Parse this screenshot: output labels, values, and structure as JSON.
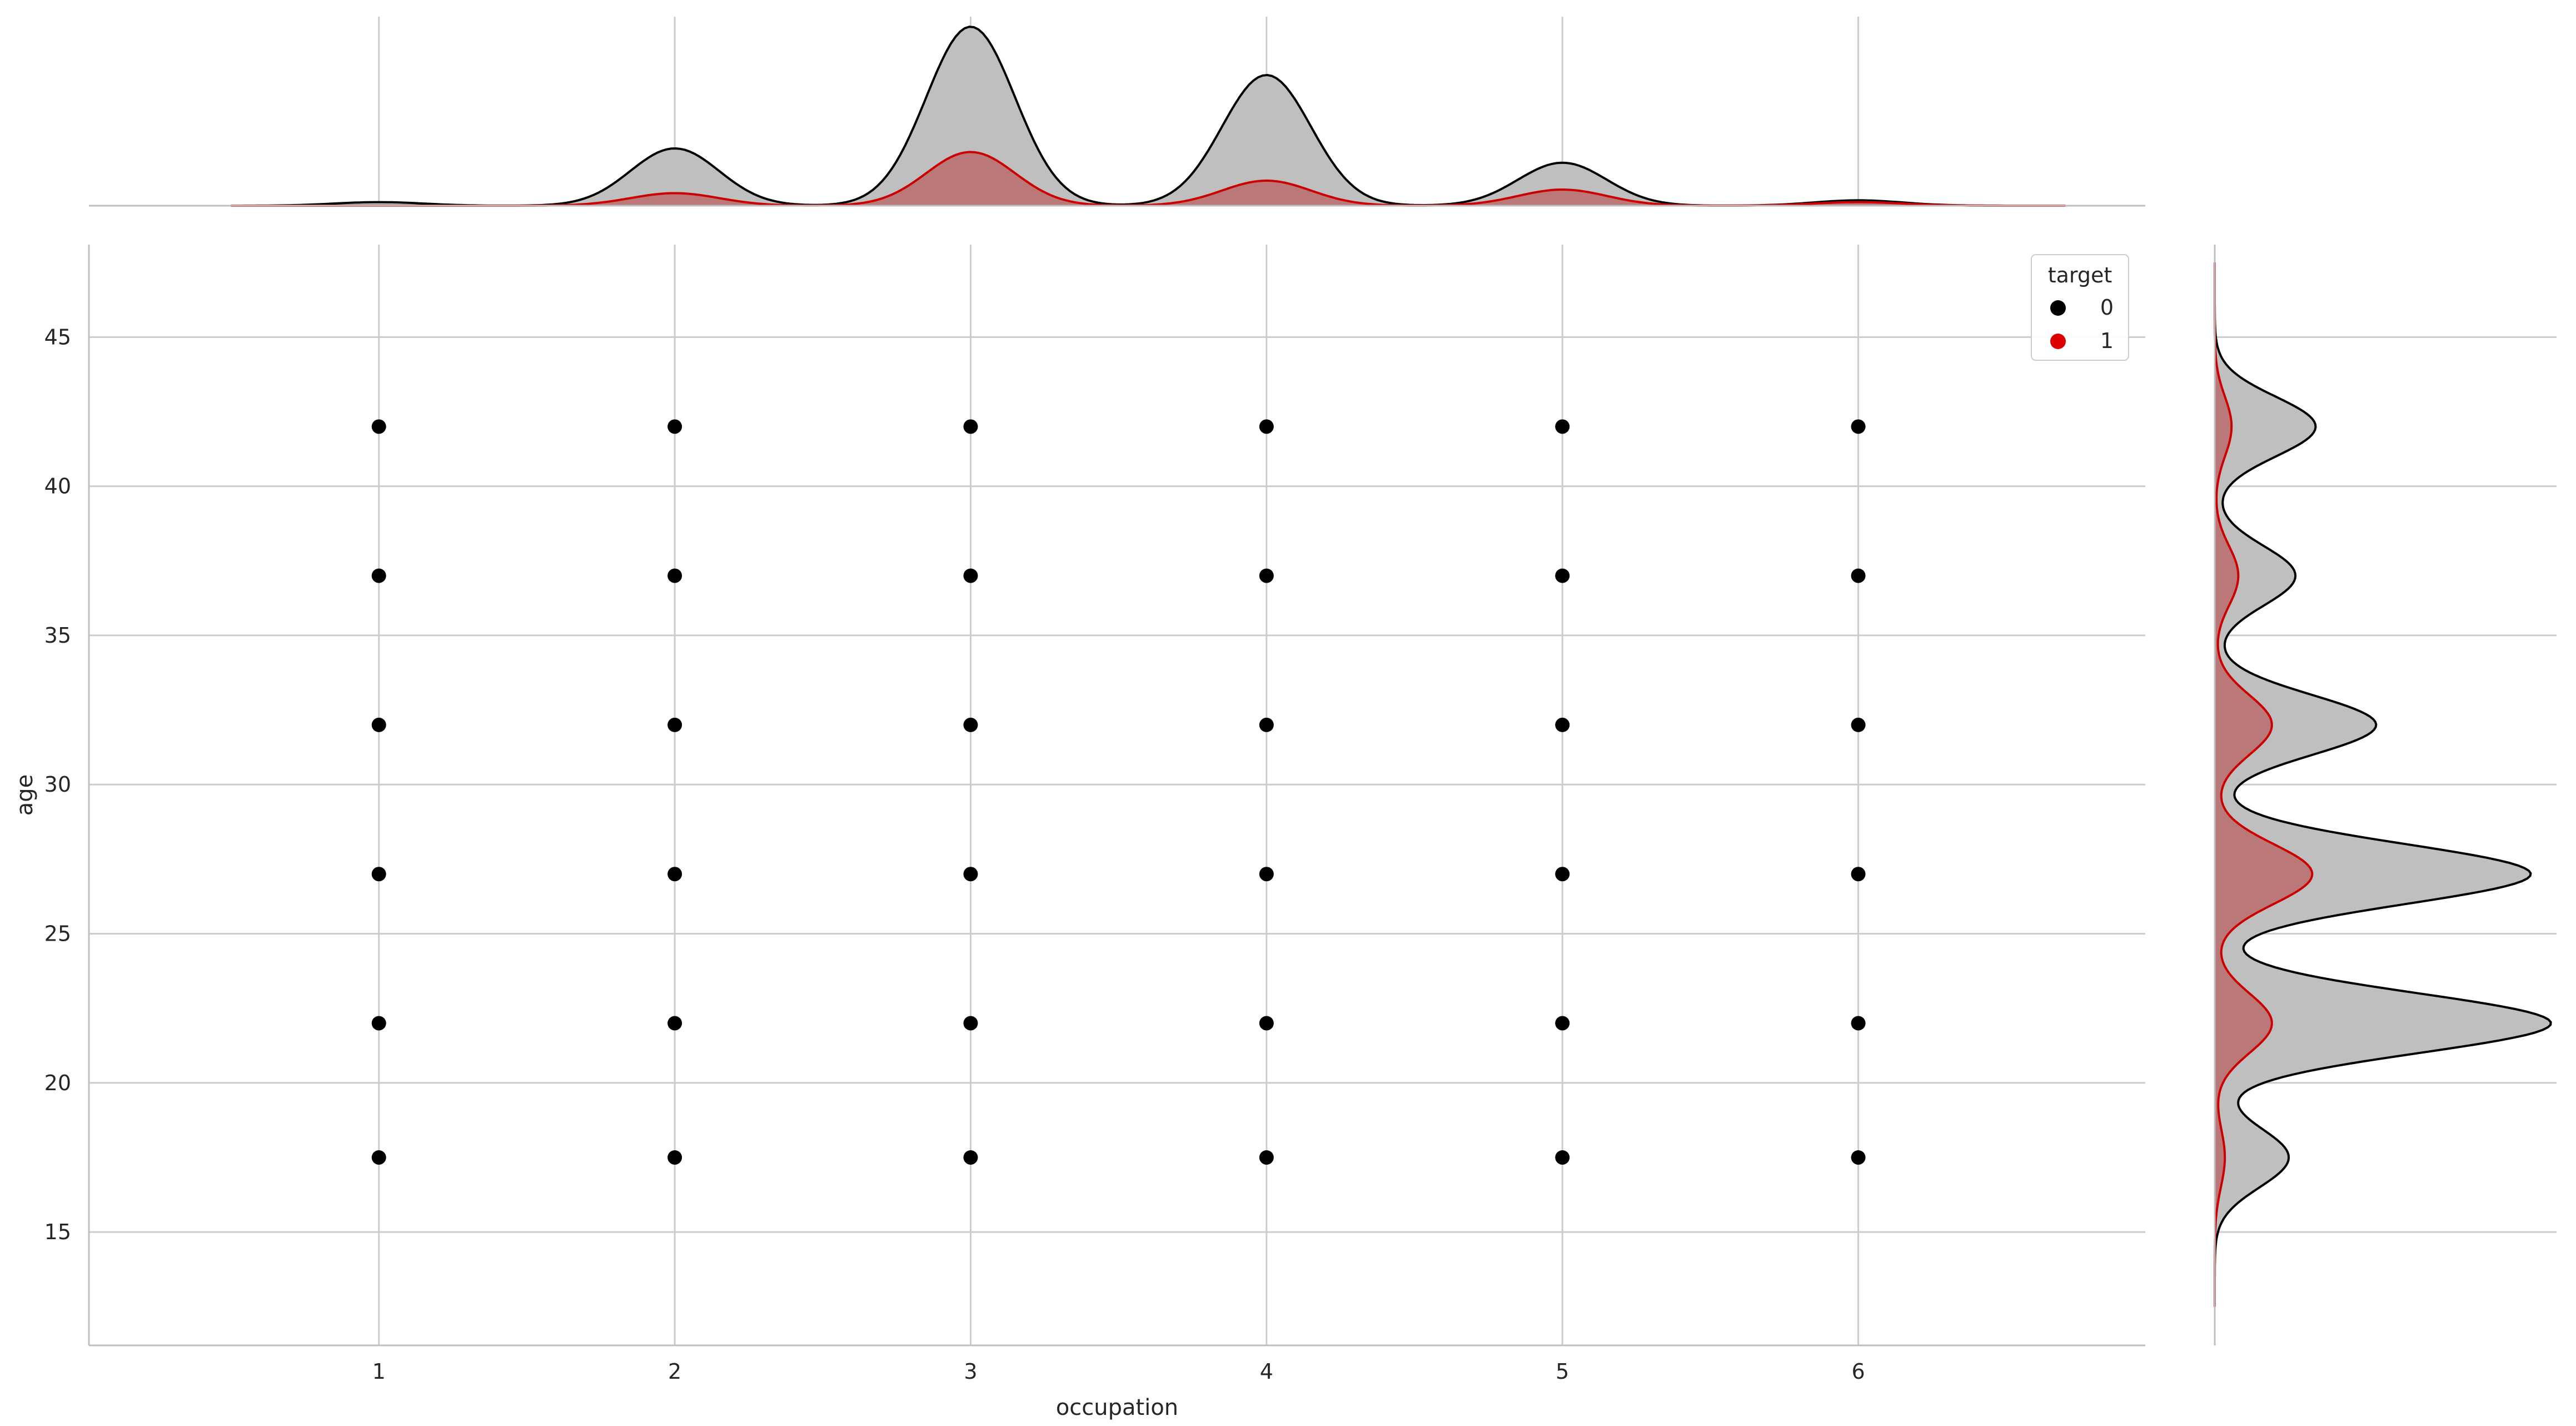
{
  "chart_data": {
    "type": "scatter",
    "subtype": "jointplot",
    "xlabel": "occupation",
    "ylabel": "age",
    "x_ticks": [
      1,
      2,
      3,
      4,
      5,
      6
    ],
    "y_ticks": [
      15,
      20,
      25,
      30,
      35,
      40,
      45
    ],
    "xlim": [
      0.02,
      6.97
    ],
    "ylim": [
      11.2,
      48.1
    ],
    "grid": true,
    "legend": {
      "title": "target",
      "placement": "top-right",
      "entries": [
        {
          "label": "0",
          "color": "#000000"
        },
        {
          "label": "1",
          "color": "#dd0000"
        }
      ]
    },
    "series": [
      {
        "name": "0",
        "color": "#000000",
        "points": [
          [
            1,
            17.5
          ],
          [
            1,
            22
          ],
          [
            1,
            27
          ],
          [
            1,
            32
          ],
          [
            1,
            37
          ],
          [
            1,
            42
          ],
          [
            2,
            17.5
          ],
          [
            2,
            22
          ],
          [
            2,
            27
          ],
          [
            2,
            32
          ],
          [
            2,
            37
          ],
          [
            2,
            42
          ],
          [
            3,
            17.5
          ],
          [
            3,
            22
          ],
          [
            3,
            27
          ],
          [
            3,
            32
          ],
          [
            3,
            37
          ],
          [
            3,
            42
          ],
          [
            4,
            17.5
          ],
          [
            4,
            22
          ],
          [
            4,
            27
          ],
          [
            4,
            32
          ],
          [
            4,
            37
          ],
          [
            4,
            42
          ],
          [
            5,
            17.5
          ],
          [
            5,
            22
          ],
          [
            5,
            27
          ],
          [
            5,
            32
          ],
          [
            5,
            37
          ],
          [
            5,
            42
          ],
          [
            6,
            17.5
          ],
          [
            6,
            22
          ],
          [
            6,
            27
          ],
          [
            6,
            32
          ],
          [
            6,
            37
          ],
          [
            6,
            42
          ]
        ]
      }
    ],
    "marginal_x": {
      "type": "kde",
      "variable": "occupation",
      "series": [
        {
          "name": "0",
          "color": "#000000",
          "fill": "#bfbfbf",
          "peaks": [
            {
              "at": 1,
              "height": 0.02
            },
            {
              "at": 2,
              "height": 0.32
            },
            {
              "at": 3,
              "height": 1.0
            },
            {
              "at": 4,
              "height": 0.73
            },
            {
              "at": 5,
              "height": 0.24
            },
            {
              "at": 6,
              "height": 0.03
            }
          ],
          "sigma": 0.15
        },
        {
          "name": "1",
          "color": "#cc0000",
          "fill": "#b96b6b",
          "peaks": [
            {
              "at": 1,
              "height": 0.0
            },
            {
              "at": 2,
              "height": 0.07
            },
            {
              "at": 3,
              "height": 0.3
            },
            {
              "at": 4,
              "height": 0.14
            },
            {
              "at": 5,
              "height": 0.09
            },
            {
              "at": 6,
              "height": 0.02
            }
          ],
          "sigma": 0.15
        }
      ]
    },
    "marginal_y": {
      "type": "kde",
      "variable": "age",
      "series": [
        {
          "name": "0",
          "color": "#000000",
          "fill": "#bfbfbf",
          "peaks": [
            {
              "at": 17.5,
              "height": 0.22
            },
            {
              "at": 22,
              "height": 1.0
            },
            {
              "at": 27,
              "height": 0.94
            },
            {
              "at": 32,
              "height": 0.48
            },
            {
              "at": 37,
              "height": 0.24
            },
            {
              "at": 42,
              "height": 0.3
            }
          ],
          "sigma": 1.0
        },
        {
          "name": "1",
          "color": "#cc0000",
          "fill": "#b96b6b",
          "peaks": [
            {
              "at": 17.5,
              "height": 0.03
            },
            {
              "at": 22,
              "height": 0.17
            },
            {
              "at": 27,
              "height": 0.29
            },
            {
              "at": 32,
              "height": 0.17
            },
            {
              "at": 37,
              "height": 0.07
            },
            {
              "at": 42,
              "height": 0.05
            }
          ],
          "sigma": 1.0
        }
      ]
    }
  }
}
